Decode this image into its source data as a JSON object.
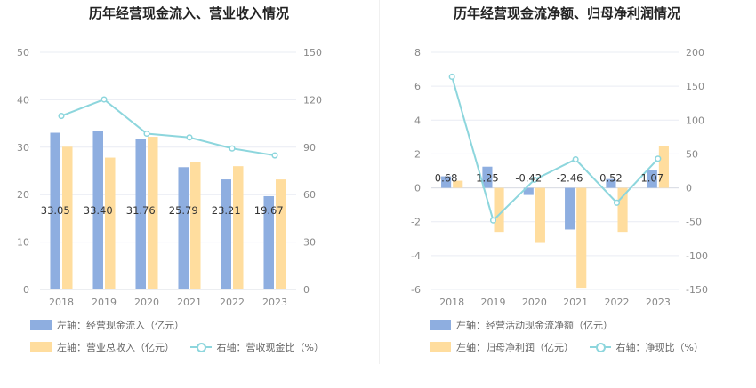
{
  "colors": {
    "bar1": "#8eaee0",
    "bar2": "#ffdd9e",
    "line": "#8dd6dd",
    "grid": "#e9ecf3",
    "axis_text": "#888888",
    "label_text": "#333333"
  },
  "chart_data": [
    {
      "type": "bar",
      "title": "历年经营现金流入、营业收入情况",
      "categories": [
        "2018",
        "2019",
        "2020",
        "2021",
        "2022",
        "2023"
      ],
      "left_axis": {
        "range": [
          0,
          50
        ],
        "ticks": [
          "0",
          "10",
          "20",
          "30",
          "40",
          "50"
        ]
      },
      "right_axis": {
        "range": [
          0,
          150
        ],
        "ticks": [
          "0",
          "30",
          "60",
          "90",
          "120",
          "150"
        ]
      },
      "series": [
        {
          "name": "左轴：经营现金流入（亿元）",
          "axis": "left",
          "kind": "bar",
          "values": [
            33.05,
            33.4,
            31.76,
            25.79,
            23.21,
            19.67
          ],
          "labels": [
            "33.05",
            "33.40",
            "31.76",
            "25.79",
            "23.21",
            "19.67"
          ]
        },
        {
          "name": "左轴：营业总收入（亿元）",
          "axis": "left",
          "kind": "bar",
          "values": [
            30.1,
            27.8,
            32.2,
            26.8,
            26.0,
            23.2
          ]
        },
        {
          "name": "右轴：营收现金比（%）",
          "axis": "right",
          "kind": "line",
          "values": [
            109.8,
            120.2,
            98.6,
            96.2,
            89.2,
            84.8
          ]
        }
      ],
      "grid": true,
      "legend_position": "bottom-left"
    },
    {
      "type": "bar",
      "title": "历年经营现金流净额、归母净利润情况",
      "categories": [
        "2018",
        "2019",
        "2020",
        "2021",
        "2022",
        "2023"
      ],
      "left_axis": {
        "range": [
          -6,
          8
        ],
        "ticks": [
          "-6",
          "-4",
          "-2",
          "0",
          "2",
          "4",
          "6",
          "8"
        ]
      },
      "right_axis": {
        "range": [
          -150,
          200
        ],
        "ticks": [
          "-150",
          "-100",
          "-50",
          "0",
          "50",
          "100",
          "150",
          "200"
        ]
      },
      "series": [
        {
          "name": "左轴：经营活动现金流净额（亿元）",
          "axis": "left",
          "kind": "bar",
          "values": [
            0.68,
            1.25,
            -0.42,
            -2.46,
            0.52,
            1.07
          ],
          "labels": [
            "0.68",
            "1.25",
            "-0.42",
            "-2.46",
            "0.52",
            "1.07"
          ]
        },
        {
          "name": "左轴：归母净利润（亿元）",
          "axis": "left",
          "kind": "bar",
          "values": [
            0.42,
            -2.6,
            -3.25,
            -5.9,
            -2.6,
            2.45
          ]
        },
        {
          "name": "右轴：净现比（%）",
          "axis": "right",
          "kind": "line",
          "values": [
            164,
            -48,
            12,
            42,
            -22,
            43
          ]
        }
      ],
      "grid": true,
      "legend_position": "bottom-left"
    }
  ]
}
